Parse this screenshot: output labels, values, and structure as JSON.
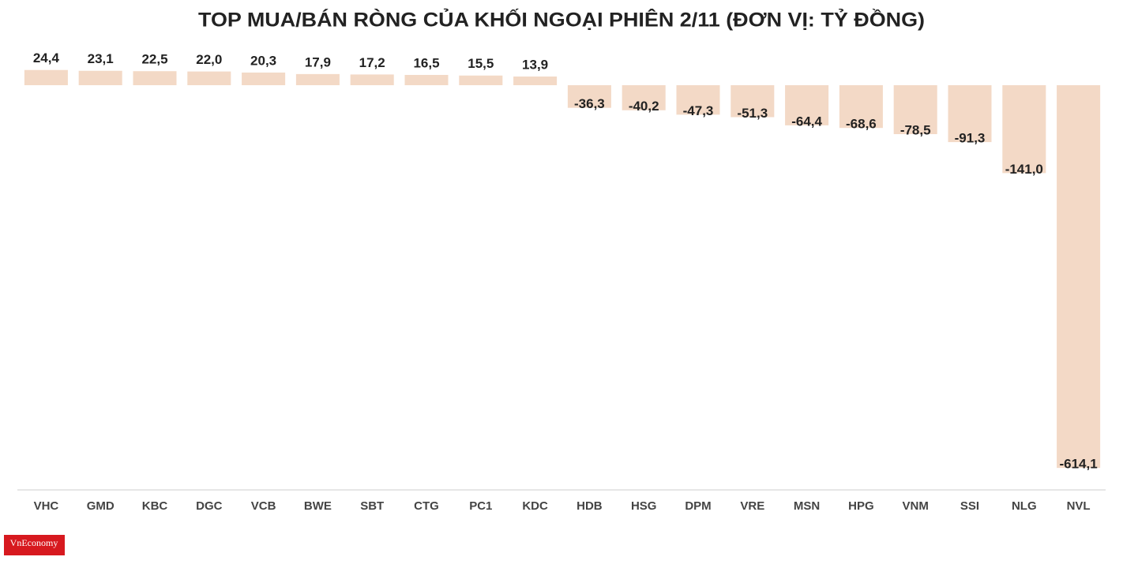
{
  "chart_data": {
    "type": "bar",
    "title": "TOP MUA/BÁN RÒNG CỦA KHỐI NGOẠI PHIÊN 2/11 (ĐƠN VỊ: TỶ ĐỒNG)",
    "categories": [
      "VHC",
      "GMD",
      "KBC",
      "DGC",
      "VCB",
      "BWE",
      "SBT",
      "CTG",
      "PC1",
      "KDC",
      "HDB",
      "HSG",
      "DPM",
      "VRE",
      "MSN",
      "HPG",
      "VNM",
      "SSI",
      "NLG",
      "NVL"
    ],
    "values": [
      24.4,
      23.1,
      22.5,
      22.0,
      20.3,
      17.9,
      17.2,
      16.5,
      15.5,
      13.9,
      -36.3,
      -40.2,
      -47.3,
      -51.3,
      -64.4,
      -68.6,
      -78.5,
      -91.3,
      -141.0,
      -614.1
    ],
    "value_labels": [
      "24,4",
      "23,1",
      "22,5",
      "22,0",
      "20,3",
      "17,9",
      "17,2",
      "16,5",
      "15,5",
      "13,9",
      "-36,3",
      "-40,2",
      "-47,3",
      "-51,3",
      "-64,4",
      "-68,6",
      "-78,5",
      "-91,3",
      "-141,0",
      "-614,1"
    ],
    "color": "#f3d9c6",
    "ylim": [
      -650,
      30
    ]
  },
  "logo": "VnEconomy"
}
